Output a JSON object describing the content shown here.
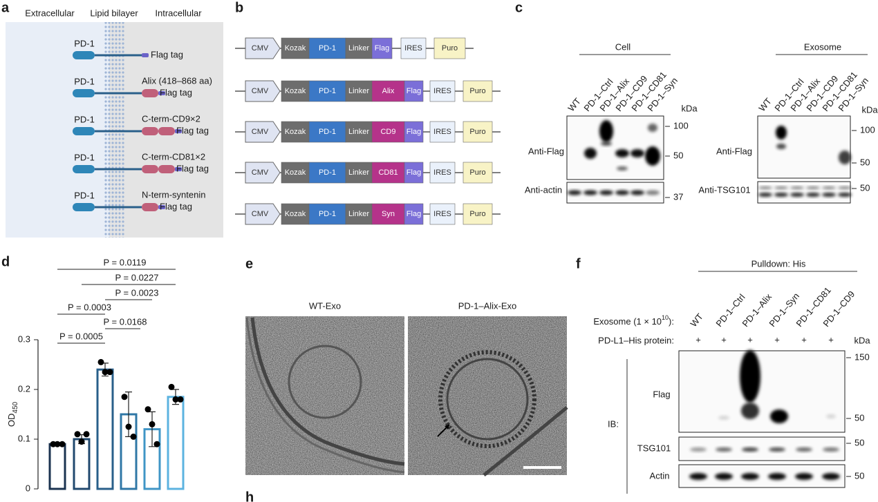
{
  "panel_a": {
    "label": "a",
    "headers": [
      "Extracellular",
      "Lipid bilayer",
      "Intracellular"
    ],
    "rows": [
      {
        "left": "PD-1",
        "right": [
          "Flag tag"
        ]
      },
      {
        "left": "PD-1",
        "right": [
          "Alix (418–868 aa)",
          "Flag tag"
        ]
      },
      {
        "left": "PD-1",
        "right": [
          "C-term-CD9×2",
          "Flag tag"
        ]
      },
      {
        "left": "PD-1",
        "right": [
          "C-term-CD81×2",
          "Flag tag"
        ]
      },
      {
        "left": "PD-1",
        "right": [
          "N-term-syntenin",
          "Flag tag"
        ]
      }
    ]
  },
  "panel_b": {
    "label": "b",
    "constructs": [
      [
        "CMV",
        "Kozak",
        "PD-1",
        "Linker",
        "Flag",
        "IRES",
        "Puro"
      ],
      [
        "CMV",
        "Kozak",
        "PD-1",
        "Linker",
        "Alix",
        "Flag",
        "IRES",
        "Puro"
      ],
      [
        "CMV",
        "Kozak",
        "PD-1",
        "Linker",
        "CD9",
        "Flag",
        "IRES",
        "Puro"
      ],
      [
        "CMV",
        "Kozak",
        "PD-1",
        "Linker",
        "CD81",
        "Flag",
        "IRES",
        "Puro"
      ],
      [
        "CMV",
        "Kozak",
        "PD-1",
        "Linker",
        "Syn",
        "Flag",
        "IRES",
        "Puro"
      ]
    ]
  },
  "panel_c": {
    "label": "c",
    "groups": [
      {
        "title": "Cell",
        "lanes": [
          "WT",
          "PD-1–Ctrl",
          "PD-1–Alix",
          "PD-1–CD9",
          "PD-1–CD81",
          "PD-1–Syn"
        ],
        "unit": "kDa",
        "blots": [
          {
            "antibody": "Anti-Flag",
            "markers": [
              "100",
              "50"
            ]
          },
          {
            "antibody": "Anti-actin",
            "markers": [
              "37"
            ]
          }
        ]
      },
      {
        "title": "Exosome",
        "lanes": [
          "WT",
          "PD-1–Ctrl",
          "PD-1–Alix",
          "PD-1–CD9",
          "PD-1–CD81",
          "PD-1–Syn"
        ],
        "unit": "kDa",
        "blots": [
          {
            "antibody": "Anti-Flag",
            "markers": [
              "100",
              "50"
            ]
          },
          {
            "antibody": "Anti-TSG101",
            "markers": [
              "50"
            ]
          }
        ]
      }
    ]
  },
  "panel_d": {
    "label": "d",
    "ylabel": "OD",
    "ylabel_subscript": "450",
    "ylim": [
      0,
      0.3
    ],
    "yticks": [
      0,
      0.1,
      0.2,
      0.3
    ],
    "values": [
      0.09,
      0.1,
      0.24,
      0.15,
      0.12,
      0.185
    ],
    "errors": [
      0.003,
      0.009,
      0.013,
      0.045,
      0.035,
      0.015
    ],
    "points": [
      [
        0.09,
        0.09,
        0.09
      ],
      [
        0.11,
        0.095,
        0.11
      ],
      [
        0.255,
        0.235,
        0.235
      ],
      [
        0.185,
        0.125,
        0.105
      ],
      [
        0.16,
        0.13,
        0.09
      ],
      [
        0.205,
        0.18,
        0.18
      ]
    ],
    "colors": [
      "#1b3350",
      "#20486e",
      "#285f8a",
      "#2f77a6",
      "#3f95c6",
      "#5cb3e0"
    ],
    "comparisons": [
      "P = 0.0119",
      "P = 0.0227",
      "P = 0.0023",
      "P = 0.0003",
      "P = 0.0168",
      "P = 0.0005"
    ]
  },
  "panel_e": {
    "label": "e",
    "images": [
      "WT-Exo",
      "PD-1–Alix-Exo"
    ]
  },
  "panel_f": {
    "label": "f",
    "header": "Pulldown: His",
    "exosome_label": "Exosome (1 × 10",
    "exosome_label_sup": "10",
    "exosome_label_end": "):",
    "protein_label": "PD-L1–His protein:",
    "lanes": [
      "WT",
      "PD-1–Ctrl",
      "PD-1–Alix",
      "PD-1–Syn",
      "PD-1–CD81",
      "PD-1–CD9"
    ],
    "plus": [
      "+",
      "+",
      "+",
      "+",
      "+",
      "+"
    ],
    "unit": "kDa",
    "ib": "IB:",
    "blots": [
      {
        "name": "Flag",
        "markers": [
          "150",
          "50"
        ]
      },
      {
        "name": "TSG101",
        "markers": [
          "50"
        ]
      },
      {
        "name": "Actin",
        "markers": [
          "50"
        ]
      }
    ]
  },
  "panel_h": {
    "label": "h"
  }
}
